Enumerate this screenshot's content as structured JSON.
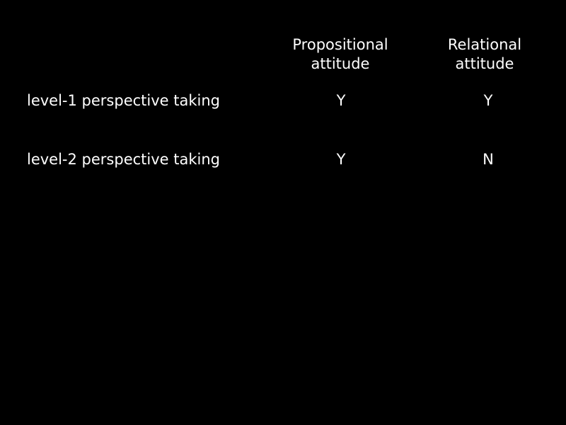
{
  "table": {
    "columns": [
      {
        "line1": "Propositional",
        "line2": "attitude"
      },
      {
        "line1": "Relational",
        "line2": "attitude"
      }
    ],
    "rows": [
      {
        "label": "level-1 perspective taking",
        "values": [
          "Y",
          "Y"
        ]
      },
      {
        "label": "level-2 perspective taking",
        "values": [
          "Y",
          "N"
        ]
      }
    ]
  },
  "colors": {
    "background": "#000000",
    "text": "#ffffff"
  }
}
